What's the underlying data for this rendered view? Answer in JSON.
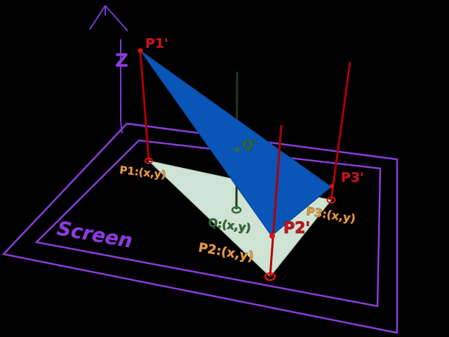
{
  "labels": {
    "axis_z": "Z",
    "screen": "Screen",
    "p1_prime": "P1'",
    "p2_prime": "P2'",
    "p3_prime": "P3'",
    "q_prime": "Q'",
    "p1": "P1:(x,y)",
    "p2": "P2:(x,y)",
    "p3": "P3:(x,y)",
    "q": "Q:(x,y)"
  },
  "colors": {
    "background": "#000000",
    "screen_outline": "#8a3ddc",
    "projected_triangle": "#cfe3d4",
    "lifted_triangle": "#0a55b8",
    "projection_line": "#b00000",
    "q_line": "#1f3a1f",
    "label_orange": "#e39a45",
    "label_red": "#c4161c",
    "label_green": "#2f6b3a",
    "label_purple": "#8a3ddc"
  }
}
